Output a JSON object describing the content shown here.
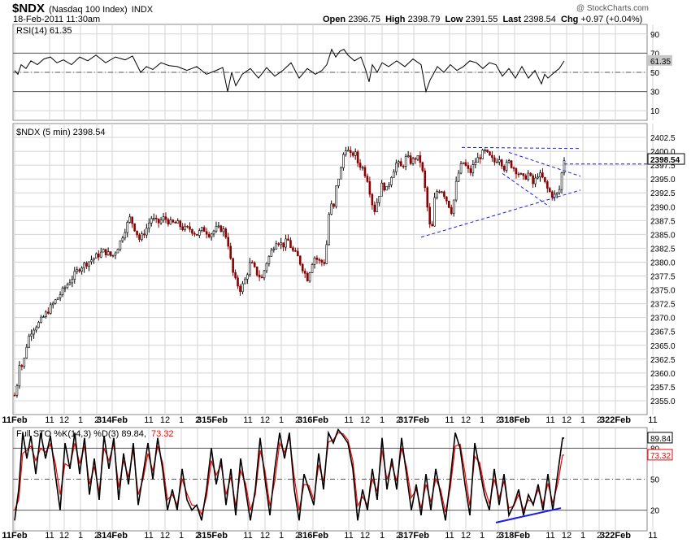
{
  "header": {
    "symbol": "$NDX",
    "name": "(Nasdaq 100 Index)",
    "exchange": "INDX",
    "timestamp": "18-Feb-2011 11:30am",
    "watermark": "@ StockCharts.com",
    "open_label": "Open",
    "open": "2396.75",
    "high_label": "High",
    "high": "2398.79",
    "low_label": "Low",
    "low": "2391.55",
    "last_label": "Last",
    "last": "2398.54",
    "chg_label": "Chg",
    "chg": "+0.97 (+0.04%)",
    "chg_icon": "up-triangle-icon"
  },
  "colors": {
    "up": "#000000",
    "down": "#8b0000",
    "trend": "#1a1aee",
    "grid": "#d4d4d4",
    "k_line": "#000000",
    "d_line": "#ff0000",
    "stoch_trend": "#1a1aee"
  },
  "chart_data": [
    {
      "type": "line",
      "panel": "rsi",
      "title": "RSI(14) 61.35",
      "last_label": "61.35",
      "ylim": [
        0,
        100
      ],
      "yticks": [
        "90",
        "70",
        "50",
        "30",
        "10"
      ],
      "reference_levels": [
        70,
        50,
        30
      ],
      "x": [
        0,
        4,
        8,
        14,
        20,
        28,
        36,
        44,
        52,
        60,
        70,
        80,
        90,
        100,
        112,
        124,
        136,
        145,
        155,
        162,
        170,
        180,
        190,
        200,
        212,
        224,
        236,
        248,
        256,
        262,
        267,
        272,
        280,
        290,
        300,
        310,
        320,
        330,
        340,
        350,
        360,
        370,
        378,
        384,
        390,
        395,
        400,
        405,
        410,
        418,
        426,
        432,
        436,
        440,
        446,
        452,
        460,
        470,
        480,
        490,
        500,
        506,
        511,
        515,
        520,
        528,
        536,
        544,
        552,
        560,
        568,
        576,
        584,
        592,
        600,
        608,
        616,
        624,
        632,
        640,
        648,
        652,
        656,
        664,
        670,
        676
      ],
      "y": [
        52,
        48,
        58,
        54,
        62,
        58,
        64,
        66,
        60,
        63,
        58,
        66,
        62,
        68,
        60,
        66,
        63,
        67,
        50,
        56,
        53,
        60,
        57,
        56,
        52,
        56,
        48,
        52,
        55,
        30,
        50,
        36,
        48,
        54,
        44,
        55,
        46,
        52,
        60,
        44,
        54,
        48,
        52,
        58,
        74,
        66,
        72,
        74,
        68,
        62,
        66,
        52,
        40,
        58,
        50,
        60,
        56,
        62,
        56,
        64,
        58,
        30,
        42,
        48,
        56,
        50,
        58,
        52,
        56,
        62,
        60,
        54,
        60,
        58,
        46,
        54,
        44,
        56,
        44,
        52,
        38,
        48,
        44,
        50,
        54,
        62
      ]
    },
    {
      "type": "candlestick",
      "panel": "price",
      "title": "$NDX (5 min) 2398.54",
      "last_label": "2398.54",
      "ylim": [
        2352.5,
        2405.0
      ],
      "yticks": [
        "2402.5",
        "2400.0",
        "2397.5",
        "2395.0",
        "2392.5",
        "2390.0",
        "2387.5",
        "2385.0",
        "2382.5",
        "2380.0",
        "2377.5",
        "2375.0",
        "2372.5",
        "2370.0",
        "2367.5",
        "2365.0",
        "2362.5",
        "2360.0",
        "2357.5",
        "2355.0"
      ],
      "close_path_x": [
        0,
        3,
        6,
        10,
        16,
        22,
        30,
        40,
        50,
        60,
        70,
        80,
        90,
        100,
        110,
        120,
        128,
        136,
        142,
        148,
        154,
        162,
        168,
        176,
        184,
        192,
        200,
        208,
        216,
        224,
        232,
        240,
        248,
        256,
        262,
        266,
        270,
        274,
        278,
        284,
        290,
        298,
        304,
        310,
        316,
        322,
        330,
        336,
        342,
        348,
        354,
        360,
        368,
        376,
        382,
        388,
        392,
        396,
        402,
        406,
        410,
        414,
        418,
        422,
        428,
        434,
        438,
        442,
        446,
        452,
        458,
        464,
        470,
        476,
        482,
        488,
        494,
        500,
        506,
        510,
        513,
        516,
        520,
        526,
        532,
        538,
        544,
        548,
        552,
        556,
        560,
        566,
        572,
        578,
        584,
        590,
        596,
        602,
        608,
        614,
        620,
        626,
        632,
        638,
        644,
        650,
        656,
        662,
        666,
        670,
        674,
        676
      ],
      "close_path_y": [
        2356,
        2358,
        2362,
        2361,
        2366,
        2368,
        2369,
        2371,
        2373,
        2375,
        2377,
        2379,
        2380,
        2381,
        2382,
        2381,
        2383,
        2386,
        2388,
        2386,
        2384,
        2386,
        2388,
        2387,
        2388,
        2387,
        2387,
        2386,
        2386,
        2385,
        2386,
        2385,
        2386,
        2386,
        2384,
        2380,
        2377,
        2376,
        2375,
        2377,
        2380,
        2378,
        2377,
        2380,
        2382,
        2384,
        2383,
        2384,
        2382,
        2381,
        2379,
        2377,
        2381,
        2380,
        2380,
        2391,
        2389,
        2394,
        2397,
        2401,
        2400,
        2399,
        2400,
        2398,
        2397,
        2395,
        2392,
        2389,
        2391,
        2394,
        2393,
        2396,
        2398,
        2397,
        2399,
        2398,
        2399,
        2398,
        2392,
        2387,
        2385,
        2391,
        2393,
        2393,
        2391,
        2389,
        2395,
        2397,
        2398,
        2397,
        2396,
        2398,
        2399,
        2400,
        2399,
        2398,
        2399,
        2397,
        2398,
        2397,
        2396,
        2395,
        2396,
        2394,
        2396,
        2395,
        2393,
        2392,
        2392,
        2393,
        2397,
        2398.54
      ],
      "candle_count": 230,
      "trendlines": [
        {
          "style": "dashed",
          "from": [
            500,
            2384.5
          ],
          "to": [
            696,
            2393.0
          ]
        },
        {
          "style": "dashed",
          "from": [
            550,
            2400.7
          ],
          "to": [
            696,
            2400.5
          ]
        },
        {
          "style": "dashed",
          "from": [
            608,
            2399.8
          ],
          "to": [
            696,
            2395.5
          ]
        },
        {
          "style": "dashed",
          "from": [
            600,
            2396.0
          ],
          "to": [
            658,
            2390.0
          ]
        },
        {
          "style": "dashed",
          "from": [
            676,
            2397.7
          ],
          "to": [
            786,
            2397.7
          ]
        }
      ]
    },
    {
      "type": "line",
      "panel": "stochastic",
      "title": "Full STO %K(14,3) %D(3) 89.84, 73.32",
      "title_prefix": "Full STO %K(14,3) %D(3) 89.84,",
      "title_d_value": "73.32",
      "k_last_label": "89.84",
      "d_last_label": "73.32",
      "ylim": [
        0,
        100
      ],
      "yticks": [
        "80",
        "50",
        "20"
      ],
      "reference_levels": [
        80,
        50,
        20
      ],
      "x": [
        0,
        5,
        10,
        15,
        20,
        26,
        32,
        38,
        44,
        50,
        56,
        62,
        68,
        74,
        80,
        86,
        92,
        98,
        104,
        110,
        116,
        122,
        128,
        134,
        140,
        146,
        152,
        158,
        164,
        170,
        176,
        182,
        188,
        194,
        200,
        206,
        212,
        218,
        224,
        230,
        236,
        242,
        248,
        254,
        260,
        266,
        272,
        278,
        284,
        290,
        296,
        302,
        308,
        314,
        320,
        326,
        332,
        338,
        344,
        350,
        356,
        362,
        368,
        374,
        380,
        386,
        392,
        398,
        404,
        410,
        416,
        422,
        428,
        434,
        440,
        446,
        452,
        458,
        464,
        470,
        476,
        482,
        488,
        494,
        500,
        506,
        512,
        518,
        524,
        530,
        536,
        542,
        548,
        554,
        560,
        566,
        572,
        578,
        584,
        590,
        596,
        602,
        608,
        614,
        620,
        626,
        632,
        638,
        644,
        650,
        656,
        662,
        668,
        674,
        676
      ],
      "k": [
        10,
        40,
        95,
        70,
        92,
        55,
        95,
        70,
        92,
        55,
        20,
        85,
        60,
        95,
        55,
        90,
        35,
        70,
        30,
        92,
        60,
        90,
        30,
        75,
        45,
        85,
        25,
        55,
        85,
        50,
        90,
        60,
        20,
        40,
        20,
        60,
        30,
        20,
        25,
        10,
        40,
        80,
        45,
        70,
        25,
        60,
        15,
        70,
        40,
        10,
        40,
        90,
        50,
        15,
        60,
        95,
        70,
        95,
        40,
        10,
        55,
        40,
        25,
        75,
        40,
        95,
        85,
        98,
        92,
        85,
        60,
        10,
        40,
        20,
        60,
        30,
        90,
        40,
        70,
        40,
        90,
        55,
        20,
        45,
        15,
        55,
        20,
        60,
        35,
        10,
        50,
        95,
        80,
        45,
        15,
        85,
        60,
        35,
        20,
        60,
        25,
        55,
        15,
        25,
        40,
        15,
        35,
        25,
        45,
        20,
        55,
        20,
        55,
        89.84,
        89.84
      ],
      "d": [
        20,
        30,
        75,
        78,
        82,
        68,
        80,
        76,
        84,
        66,
        35,
        65,
        62,
        85,
        65,
        82,
        45,
        62,
        38,
        80,
        68,
        84,
        42,
        68,
        52,
        78,
        35,
        50,
        75,
        58,
        82,
        66,
        30,
        35,
        25,
        50,
        36,
        25,
        24,
        16,
        33,
        68,
        54,
        64,
        35,
        52,
        24,
        58,
        46,
        20,
        35,
        78,
        58,
        24,
        48,
        85,
        76,
        90,
        52,
        20,
        45,
        44,
        30,
        64,
        48,
        86,
        88,
        95,
        94,
        88,
        68,
        24,
        33,
        25,
        50,
        38,
        78,
        50,
        64,
        48,
        80,
        62,
        32,
        40,
        22,
        45,
        28,
        50,
        40,
        18,
        42,
        82,
        84,
        56,
        24,
        72,
        66,
        42,
        26,
        50,
        32,
        48,
        22,
        24,
        35,
        20,
        30,
        27,
        40,
        26,
        46,
        27,
        45,
        73.32,
        73.32
      ],
      "trendline": {
        "from": [
          592,
          8
        ],
        "to": [
          672,
          22
        ]
      }
    }
  ],
  "x_axis": {
    "labels": [
      "11Feb",
      "11",
      "12",
      "1",
      "2",
      "314Feb",
      "11",
      "12",
      "1",
      "2",
      "315Feb",
      "11",
      "12",
      "1",
      "2",
      "316Feb",
      "11",
      "12",
      "1",
      "2",
      "317Feb",
      "11",
      "12",
      "1",
      "2",
      "318Feb",
      "11",
      "12",
      "1",
      "2",
      "322Feb",
      "11"
    ]
  }
}
